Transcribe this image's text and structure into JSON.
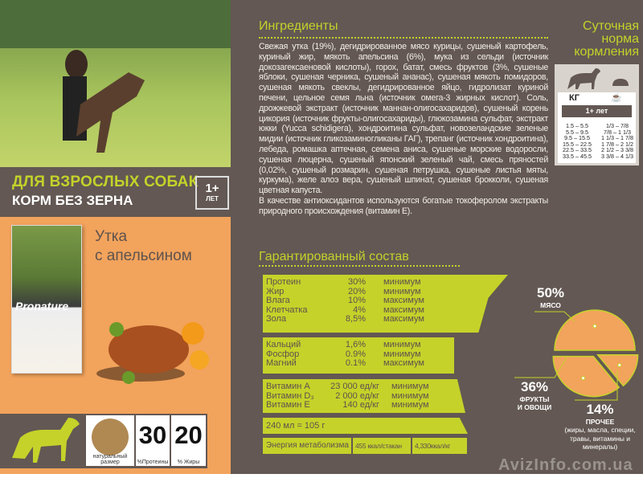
{
  "left": {
    "category": "ДЛЯ ВЗРОСЛЫХ СОБАК",
    "subtitle": "КОРМ БЕЗ ЗЕРНА",
    "age_badge": {
      "value": "1+",
      "unit": "ЛЕТ"
    },
    "product_name": [
      "Утка",
      "с апельсином"
    ],
    "bag_brand": "Pronature",
    "kibble_caption": "натуральный размер",
    "protein": {
      "value": "30",
      "caption": "%Протеины"
    },
    "fat": {
      "value": "20",
      "caption": "% Жиры"
    }
  },
  "ingredients": {
    "title": "Ингредиенты",
    "text": "Свежая утка (19%), дегидрированное мясо курицы, сушеный картофель, куриный жир, мякоть апельсина (6%), мука из сельди (источник докозагексаеновой кислоты), горох, батат, смесь фруктов (3%, сушеные яблоки, сушеная черника, сушеный ананас), сушеная мякоть помидоров, сушеная мякоть свеклы, дегидрированное яйцо, гидролизат куриной печени, цельное семя льна (источник омега-3 жирных кислот). Соль, дрожжевой экстракт (источник маннан-олигосахаридов), сушеный корень цикория (источник фрукты-олигосахариды), глюкозамина сульфат, экстракт юкки (Yucca schidigera), хондроитина сульфат, новозеландские зеленые мидии (источник гликозаминогликаны ГАГ), трепанг (источник хондроитина), лебеда, ромашка аптечная, семена аниса, сушеные морские водоросли, сушеная люцерна, сушеный японский зеленый чай, смесь пряностей (0,02%, сушеный розмарин, сушеная петрушка, сушеные листья мяты, куркума), желе алоэ вера, сушеный шпинат, сушеная брокколи, сушеная цветная капуста.",
    "antioxidants": "В качестве антиоксидантов используются богатые токоферолом экстракты природного происхождения (витамин Е)."
  },
  "feeding": {
    "title": [
      "Суточная",
      "норма",
      "кормления"
    ],
    "col_weight": "КГ",
    "age": "1+ лет",
    "weights": [
      "1.5 – 5.5",
      "5.5 – 9.5",
      "9.5 – 15.5",
      "15.5 – 22.5",
      "22.5 – 33.5",
      "33.5 – 45.5"
    ],
    "cups": [
      "1/3 – 7/8",
      "7/8 – 1 1/3",
      "1 1/3 – 1 7/8",
      "1 7/8 – 2 1/2",
      "2 1/2 – 3 3/8",
      "3 3/8 – 4 1/3"
    ]
  },
  "analysis": {
    "title": "Гарантированный состав",
    "main": [
      {
        "name": "Протеин",
        "value": "30%",
        "qual": "минимум"
      },
      {
        "name": "Жир",
        "value": "20%",
        "qual": "минимум"
      },
      {
        "name": "Влага",
        "value": "10%",
        "qual": "максимум"
      },
      {
        "name": "Клетчатка",
        "value": "4%",
        "qual": "максимум"
      },
      {
        "name": "Зола",
        "value": "8,5%",
        "qual": "максимум"
      }
    ],
    "minerals": [
      {
        "name": "Кальций",
        "value": "1,6%",
        "qual": "минимум"
      },
      {
        "name": "Фосфор",
        "value": "0.9%",
        "qual": "минимум"
      },
      {
        "name": "Магний",
        "value": "0.1%",
        "qual": "максимум"
      }
    ],
    "vitamins": [
      {
        "name": "Витамин A",
        "value": "23 000 ед/кг",
        "qual": "минимум"
      },
      {
        "name": "Витамин D₃",
        "value": "2 000 ед/кг",
        "qual": "минимум"
      },
      {
        "name": "Витамин E",
        "value": "140 ед/кг",
        "qual": "минимум"
      }
    ],
    "cup": "240 мл = 105 г",
    "energy_label": "Энергия метаболизма",
    "energy_cup": "455 ккал/стакан",
    "energy_kg": "4,330ккал/кг"
  },
  "composition": {
    "slices": [
      {
        "value": 50,
        "pct": "50%",
        "label": "МЯСО"
      },
      {
        "value": 14,
        "pct": "14%",
        "label": "ПРОЧЕЕ",
        "note": "(жиры, масла, специи, травы, витамины и минералы)"
      },
      {
        "value": 36,
        "pct": "36%",
        "label": "ФРУКТЫ И ОВОЩИ"
      }
    ],
    "fill": "#f2a35c",
    "stroke": "#c5d22a"
  },
  "watermark": "AvizInfo.com.ua"
}
